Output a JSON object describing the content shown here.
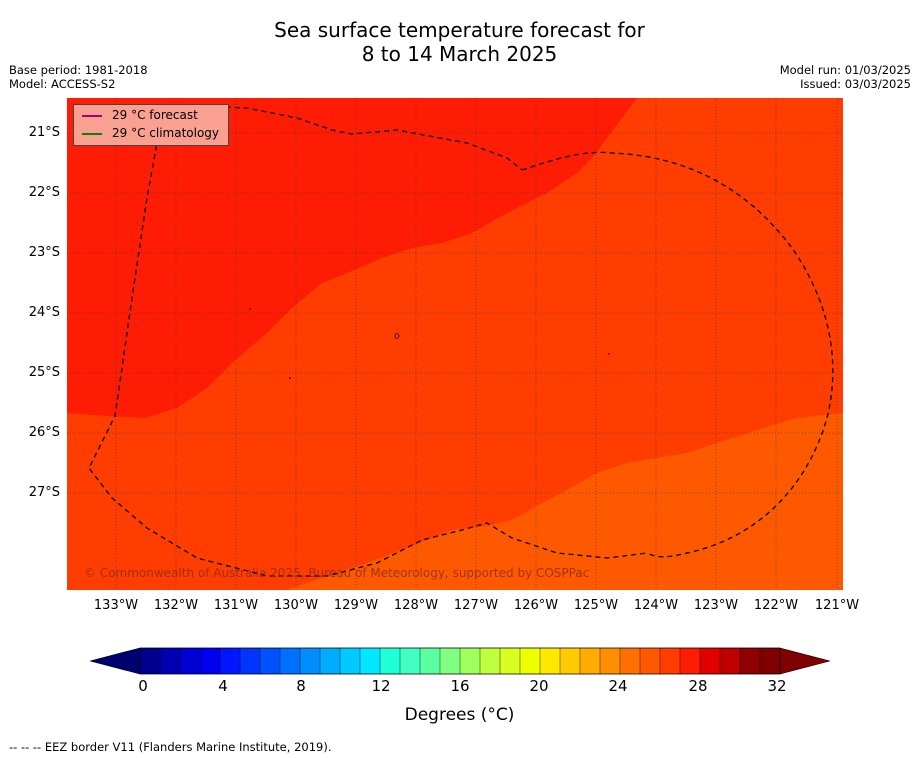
{
  "title": {
    "line1": "Sea surface temperature forecast for",
    "line2": "8 to 14 March 2025"
  },
  "meta": {
    "base_period": "Base period: 1981-2018",
    "model": "Model: ACCESS-S2",
    "model_run": "Model run: 01/03/2025",
    "issued": "Issued: 03/03/2025"
  },
  "map": {
    "latitude_labels": [
      "21°S",
      "22°S",
      "23°S",
      "24°S",
      "25°S",
      "26°S",
      "27°S"
    ],
    "longitude_labels": [
      "133°W",
      "132°W",
      "131°W",
      "130°W",
      "129°W",
      "128°W",
      "127°W",
      "126°W",
      "125°W",
      "124°W",
      "123°W",
      "122°W",
      "121°W"
    ],
    "colors": {
      "band_30_31": "#ff1c04",
      "band_29_30": "#ff3d01",
      "band_28_29": "#ff5900",
      "legend_bg": "#f9a090"
    },
    "legend": [
      {
        "label": "29 °C  forecast",
        "color": "#a0007a"
      },
      {
        "label": "29 °C  climatology",
        "color": "#108010"
      }
    ],
    "copyright": "© Commonwealth of Australia 2025, Bureau of Meteorology, supported by COSPPac"
  },
  "colorbar": {
    "ticks": [
      "0",
      "4",
      "8",
      "12",
      "16",
      "20",
      "24",
      "28",
      "32"
    ],
    "label": "Degrees (°C)",
    "colors": [
      "#00008f",
      "#0000b0",
      "#0000d4",
      "#0000f0",
      "#0016ff",
      "#0034ff",
      "#0052ff",
      "#0070ff",
      "#008eff",
      "#00acff",
      "#00caff",
      "#00e8ff",
      "#20ffd8",
      "#40ffc0",
      "#5cffa0",
      "#80ff80",
      "#a0ff5c",
      "#c0ff40",
      "#d8ff20",
      "#f0ff00",
      "#ffe800",
      "#ffca00",
      "#ffac00",
      "#ff8e00",
      "#ff7000",
      "#ff5900",
      "#ff3d01",
      "#ff1c04",
      "#e00000",
      "#c00000",
      "#900000",
      "#800000"
    ],
    "lower_extend_color": "#000070",
    "upper_extend_color": "#800000"
  },
  "footnote": "--  --  -- EEZ border V11 (Flanders Marine Institute, 2019)."
}
